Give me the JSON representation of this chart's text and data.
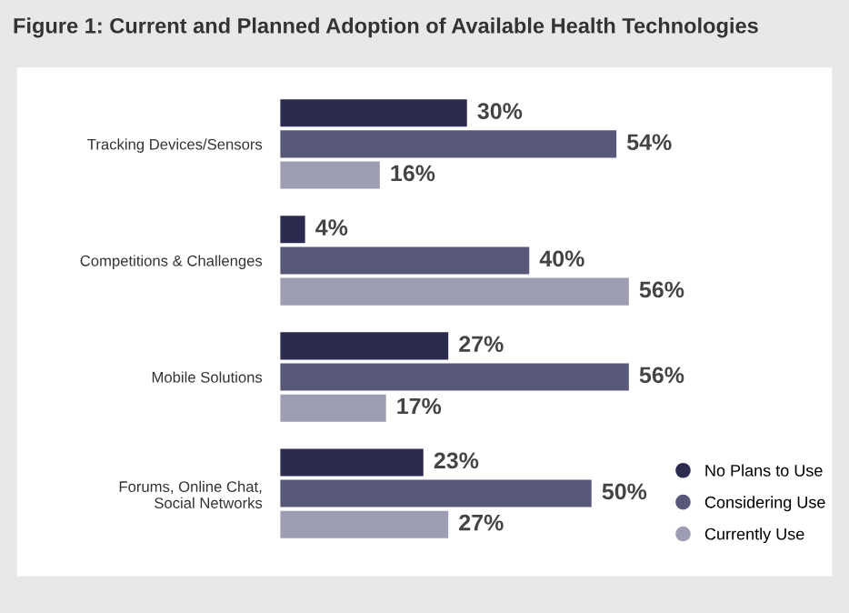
{
  "chart_data": {
    "type": "bar",
    "orientation": "horizontal",
    "title": "Figure 1: Current and Planned Adoption of Available Health Technologies",
    "categories": [
      "Tracking Devices/Sensors",
      "Competitions & Challenges",
      "Mobile Solutions",
      "Forums, Online Chat,\nSocial Networks"
    ],
    "series": [
      {
        "name": "No Plans to Use",
        "color": "#2b2b4f",
        "values": [
          30,
          4,
          27,
          23
        ],
        "value_labels": [
          "30%",
          "4%",
          "27%",
          "23%"
        ]
      },
      {
        "name": "Considering Use",
        "color": "#58587a",
        "values": [
          54,
          40,
          56,
          50
        ],
        "value_labels": [
          "54%",
          "40%",
          "56%",
          "50%"
        ]
      },
      {
        "name": "Currently Use",
        "color": "#9d9db4",
        "values": [
          16,
          56,
          17,
          27
        ],
        "value_labels": [
          "16%",
          "56%",
          "17%",
          "27%"
        ]
      }
    ],
    "legend": "bottom right",
    "grid": false,
    "marker": "circle"
  }
}
